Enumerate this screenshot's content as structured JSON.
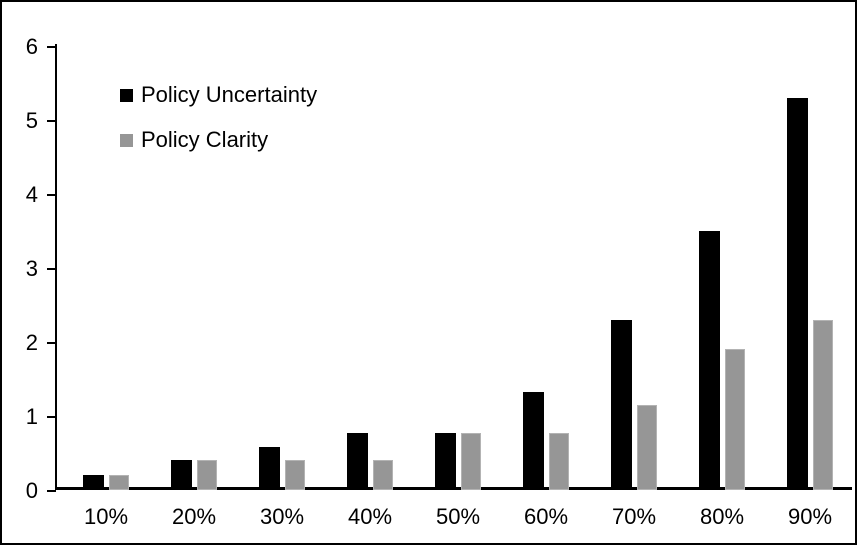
{
  "chart_data": {
    "type": "bar",
    "title": "",
    "xlabel": "",
    "ylabel": "",
    "categories": [
      "10%",
      "20%",
      "30%",
      "40%",
      "50%",
      "60%",
      "70%",
      "80%",
      "90%"
    ],
    "series": [
      {
        "name": "Policy Uncertainty",
        "color": "#000000",
        "values": [
          0.2,
          0.4,
          0.58,
          0.77,
          0.77,
          1.33,
          2.3,
          3.5,
          5.3
        ]
      },
      {
        "name": "Policy Clarity",
        "color": "#969696",
        "values": [
          0.2,
          0.4,
          0.4,
          0.4,
          0.77,
          0.77,
          1.15,
          1.9,
          2.3
        ]
      }
    ],
    "ylim": [
      0,
      6
    ],
    "yticks": [
      0,
      1,
      2,
      3,
      4,
      5,
      6
    ],
    "grid": false,
    "legend_position": "top-left"
  },
  "frame": {
    "border_color": "#000000",
    "background_color": "#ffffff"
  }
}
